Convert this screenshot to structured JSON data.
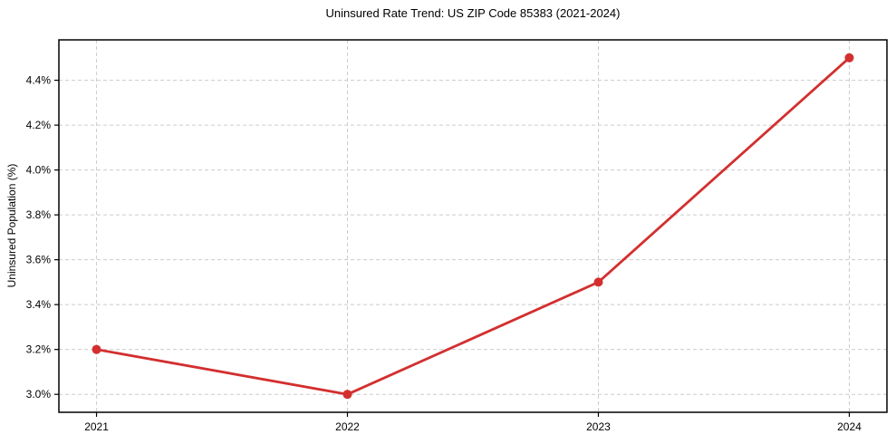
{
  "figure": {
    "background": "#ffffff"
  },
  "chart_data": {
    "type": "line",
    "title": "Uninsured Rate Trend: US ZIP Code 85383 (2021-2024)",
    "xlabel": "",
    "ylabel": "Uninsured Population (%)",
    "x": [
      2021,
      2022,
      2023,
      2024
    ],
    "series": [
      {
        "name": "Uninsured Population (%)",
        "color": "#d32f2f",
        "values": [
          3.2,
          3.0,
          3.5,
          4.5
        ]
      }
    ],
    "xticks": [
      2021,
      2022,
      2023,
      2024
    ],
    "xtick_labels": [
      "2021",
      "2022",
      "2023",
      "2024"
    ],
    "yticks": [
      3.0,
      3.2,
      3.4,
      3.6,
      3.8,
      4.0,
      4.2,
      4.4
    ],
    "ytick_labels": [
      "3.0%",
      "3.2%",
      "3.4%",
      "3.6%",
      "3.8%",
      "4.0%",
      "4.2%",
      "4.4%"
    ],
    "xlim": [
      2020.85,
      2024.15
    ],
    "ylim": [
      2.92,
      4.58
    ],
    "grid": true,
    "grid_style": "dashed",
    "grid_color": "#cccccc",
    "spine_color": "#000000",
    "tick_color": "#000000",
    "text_color": "#000000",
    "marker": "circle",
    "marker_size": 5,
    "line_width": 2.8,
    "legend": false
  }
}
